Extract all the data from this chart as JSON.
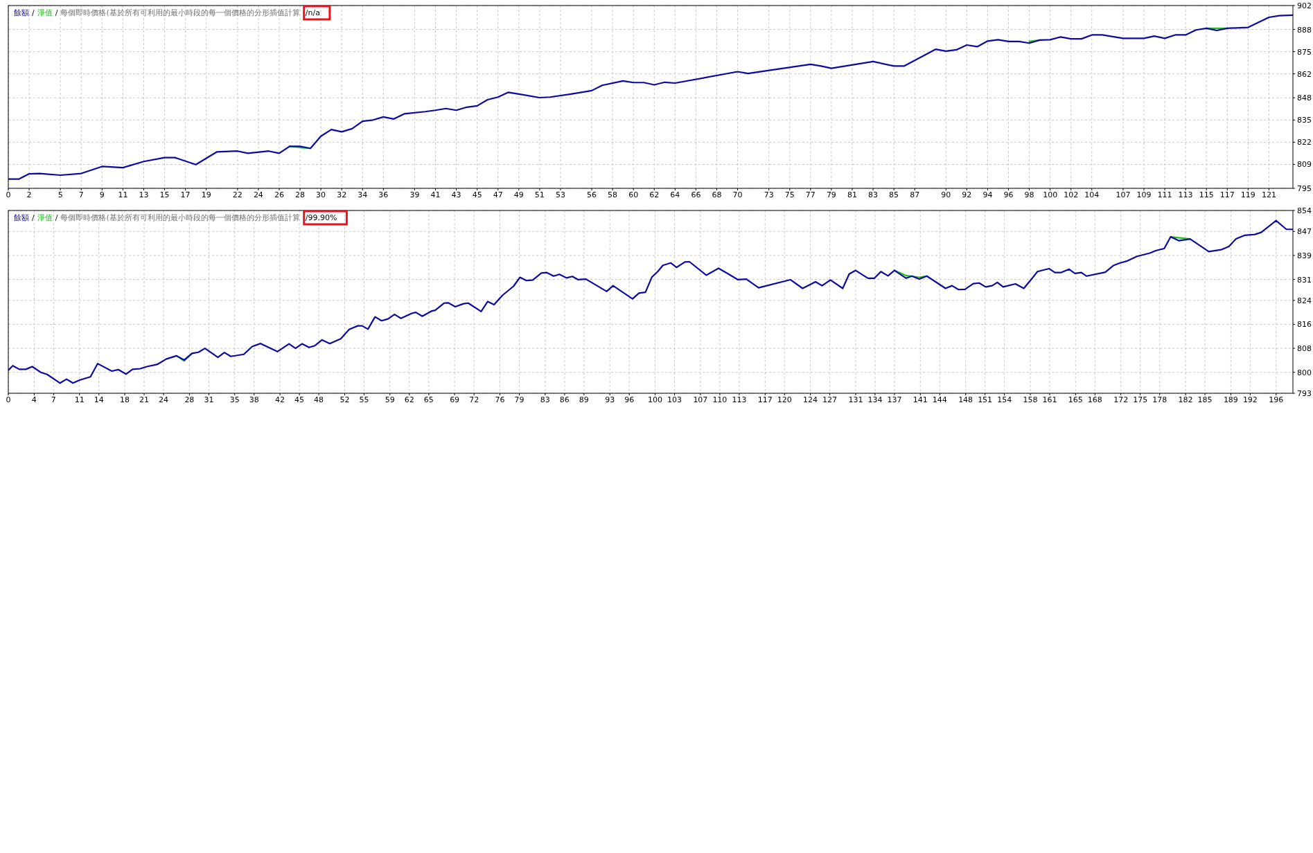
{
  "chart_data": [
    {
      "type": "line",
      "title": "每個即時價格(基於所有可利用的最小時段的每一個價格的分形插值計算",
      "subtitle": "n/a",
      "legend": "top left",
      "grid": true,
      "xlim": [
        0,
        123.3
      ],
      "xticks": [
        0,
        2,
        5,
        7,
        9,
        11,
        13,
        15,
        17,
        19,
        22,
        24,
        26,
        28,
        30,
        32,
        34,
        36,
        39,
        41,
        43,
        45,
        47,
        49,
        51,
        53,
        56,
        58,
        60,
        62,
        64,
        66,
        68,
        70,
        73,
        75,
        77,
        79,
        81,
        83,
        85,
        87,
        90,
        92,
        94,
        96,
        98,
        100,
        102,
        104,
        107,
        109,
        111,
        113,
        115,
        117,
        119,
        121
      ],
      "ylim": [
        795,
        902
      ],
      "yticks": [
        795,
        809,
        822,
        835,
        848,
        862,
        875,
        888,
        902
      ],
      "annotations": [
        "/",
        "/",
        "/"
      ],
      "series": [
        {
          "name": "餘額",
          "color": "#0a0aa0",
          "x": [
            0,
            1,
            2,
            3,
            5,
            7,
            9,
            11,
            13,
            15,
            16,
            18,
            20,
            22,
            23,
            25,
            26,
            27,
            28,
            29,
            30,
            31,
            32,
            33,
            34,
            35,
            36,
            37,
            38,
            40,
            41,
            42,
            43,
            44,
            45,
            46,
            47,
            48,
            49,
            51,
            52,
            54,
            56,
            57,
            59,
            60,
            61,
            62,
            63,
            64,
            70,
            71,
            77,
            78,
            79,
            83,
            85,
            86,
            89,
            90,
            91,
            92,
            93,
            94,
            95,
            96,
            97,
            98,
            99,
            100,
            101,
            102,
            103,
            104,
            105,
            107,
            109,
            110,
            111,
            112,
            113,
            114,
            115,
            116,
            117,
            119,
            121,
            122,
            123.3
          ],
          "values": [
            800.4,
            800.4,
            803.5,
            803.7,
            802.7,
            803.7,
            807.8,
            807.1,
            810.7,
            813,
            813,
            808.9,
            816.3,
            816.8,
            815.5,
            816.8,
            815.5,
            819.6,
            819.6,
            818.4,
            825.5,
            829.4,
            828.1,
            829.9,
            834.3,
            835,
            836.8,
            835.6,
            838.6,
            839.9,
            840.7,
            841.7,
            840.7,
            842.5,
            843.3,
            846.9,
            848.4,
            851.2,
            850.2,
            848.1,
            848.4,
            850.2,
            852.2,
            855.3,
            857.9,
            856.9,
            856.9,
            855.6,
            857.1,
            856.6,
            863.3,
            862.2,
            867.6,
            866.6,
            865.3,
            869.2,
            866.6,
            866.6,
            876.4,
            875.3,
            876.1,
            878.9,
            877.9,
            881.2,
            882,
            881,
            881,
            880,
            881.8,
            882,
            883.6,
            882.5,
            882.5,
            884.8,
            884.8,
            882.8,
            882.8,
            884.1,
            882.8,
            884.8,
            884.8,
            887.7,
            888.7,
            887.4,
            888.7,
            889.2,
            895.1,
            896.1,
            896.4
          ]
        },
        {
          "name": "淨值",
          "color": "#20c020",
          "x": [
            27,
            28,
            29,
            30,
            97,
            98,
            99,
            100,
            115,
            116,
            117
          ],
          "values": [
            819.6,
            818.9,
            818.4,
            null,
            null,
            881,
            881.8,
            null,
            888.7,
            888.7,
            888.7
          ]
        }
      ]
    },
    {
      "type": "line",
      "title": "每個即時價格(基於所有可利用的最小時段的每一個價格的分形插值計算",
      "subtitle": "99.90%",
      "legend": "top left",
      "grid": true,
      "xlim": [
        0,
        198.6
      ],
      "xticks": [
        0,
        4,
        7,
        11,
        14,
        18,
        21,
        24,
        28,
        31,
        35,
        38,
        42,
        45,
        48,
        52,
        55,
        59,
        62,
        65,
        69,
        72,
        76,
        79,
        83,
        86,
        89,
        93,
        96,
        100,
        103,
        107,
        110,
        113,
        117,
        120,
        124,
        127,
        131,
        134,
        137,
        141,
        144,
        148,
        151,
        154,
        158,
        161,
        165,
        168,
        172,
        175,
        178,
        182,
        185,
        189,
        192,
        196
      ],
      "ylim": [
        793,
        854
      ],
      "yticks": [
        793,
        800,
        808,
        816,
        824,
        831,
        839,
        847,
        854
      ],
      "annotations": [
        "/",
        "/",
        "/"
      ],
      "series": [
        {
          "name": "餘額",
          "color": "#0a0aa0",
          "x": [
            0,
            0.7,
            1.7,
            2.7,
            3.7,
            5,
            6,
            8,
            9,
            10,
            11,
            12.7,
            13.8,
            16,
            17,
            18.2,
            19.2,
            20.4,
            21.4,
            23,
            24.4,
            26,
            27.2,
            28.4,
            29.4,
            30.4,
            32.4,
            33.4,
            34.4,
            36.4,
            37.7,
            39,
            41.6,
            43.4,
            44.4,
            45.4,
            46.5,
            47.4,
            48.5,
            49.7,
            51.4,
            52.7,
            54,
            54.7,
            55.6,
            56.7,
            57.7,
            58.7,
            59.7,
            60.7,
            62.4,
            63,
            64,
            65.4,
            66,
            67.4,
            68,
            69.1,
            70.4,
            71.1,
            73.1,
            74.1,
            75.1,
            76.4,
            78.1,
            79.1,
            80.1,
            81.1,
            82.4,
            83.2,
            84.3,
            85.2,
            86.3,
            87.2,
            88.1,
            89.3,
            92.5,
            93.5,
            96.5,
            97.5,
            98.5,
            99.5,
            100.4,
            101.2,
            102.4,
            103.3,
            104.6,
            105.3,
            107.9,
            109.8,
            111.1,
            112.8,
            114.1,
            116,
            120.9,
            122.8,
            124.8,
            125.8,
            127.1,
            129,
            130,
            131,
            132.9,
            133.9,
            134.9,
            136,
            137,
            138.8,
            139.7,
            140.8,
            142,
            144.9,
            145.9,
            146.9,
            147.9,
            149.2,
            150.1,
            151.1,
            152.1,
            152.9,
            153.8,
            155.7,
            157,
            158.3,
            159.1,
            160.9,
            161.8,
            162.8,
            164,
            164.9,
            165.9,
            166.7,
            169.6,
            170.9,
            171.9,
            172.9,
            174.5,
            176.5,
            177.4,
            178.7,
            179.7,
            181,
            182.7,
            185.6,
            187.5,
            188.7,
            189.8,
            191.1,
            192.7,
            193.7,
            196,
            197.6,
            198.6
          ],
          "values": [
            800.7,
            802.2,
            801,
            801,
            801.9,
            800,
            799.3,
            796.4,
            797.7,
            796.4,
            797.4,
            798.5,
            802.9,
            800.4,
            800.9,
            799.4,
            801,
            801.2,
            801.9,
            802.6,
            804.4,
            805.5,
            804.1,
            806.3,
            806.7,
            808,
            805,
            806.6,
            805.3,
            806,
            808.6,
            809.6,
            806.9,
            809.5,
            808,
            809.5,
            808.3,
            808.9,
            810.8,
            809.6,
            811.2,
            814.3,
            815.5,
            815.5,
            814.4,
            818.5,
            817.2,
            817.8,
            819.3,
            818,
            819.7,
            820,
            818.7,
            820.4,
            820.7,
            823.1,
            823.2,
            821.9,
            822.9,
            823.1,
            820.3,
            823.6,
            822.6,
            825.7,
            828.7,
            831.7,
            830.6,
            830.8,
            833.1,
            833.3,
            832.1,
            832.7,
            831.5,
            832,
            830.9,
            831.1,
            827,
            828.9,
            824.5,
            826.4,
            826.7,
            831.8,
            833.6,
            835.7,
            836.5,
            835,
            836.8,
            836.9,
            832.4,
            834.7,
            833.1,
            830.9,
            831.1,
            828.2,
            830.9,
            828,
            830.2,
            828.9,
            830.8,
            828,
            832.8,
            834,
            831.4,
            831.4,
            833.6,
            832.2,
            834,
            831.4,
            832.1,
            831.1,
            832.1,
            828,
            828.9,
            827.6,
            827.7,
            829.6,
            829.8,
            828.5,
            828.9,
            830,
            828.5,
            829.5,
            828,
            831.4,
            833.6,
            834.6,
            833.3,
            833.3,
            834.4,
            833,
            833.3,
            832.1,
            833.4,
            835.7,
            836.5,
            837.1,
            838.7,
            839.8,
            840.6,
            841.3,
            845.2,
            843.9,
            844.5,
            840.3,
            840.9,
            842,
            844.5,
            845.7,
            846,
            846.7,
            850.6,
            847.7,
            847.7
          ]
        },
        {
          "name": "淨值",
          "color": "#20c020",
          "x": [
            26,
            27.2,
            28.4,
            29,
            137,
            138.8,
            140.8,
            142,
            143,
            179.7,
            182.7
          ],
          "values": [
            805.5,
            803.8,
            806.3,
            null,
            834,
            832.3,
            831.7,
            832.1,
            null,
            845.2,
            844.5
          ]
        }
      ]
    }
  ]
}
